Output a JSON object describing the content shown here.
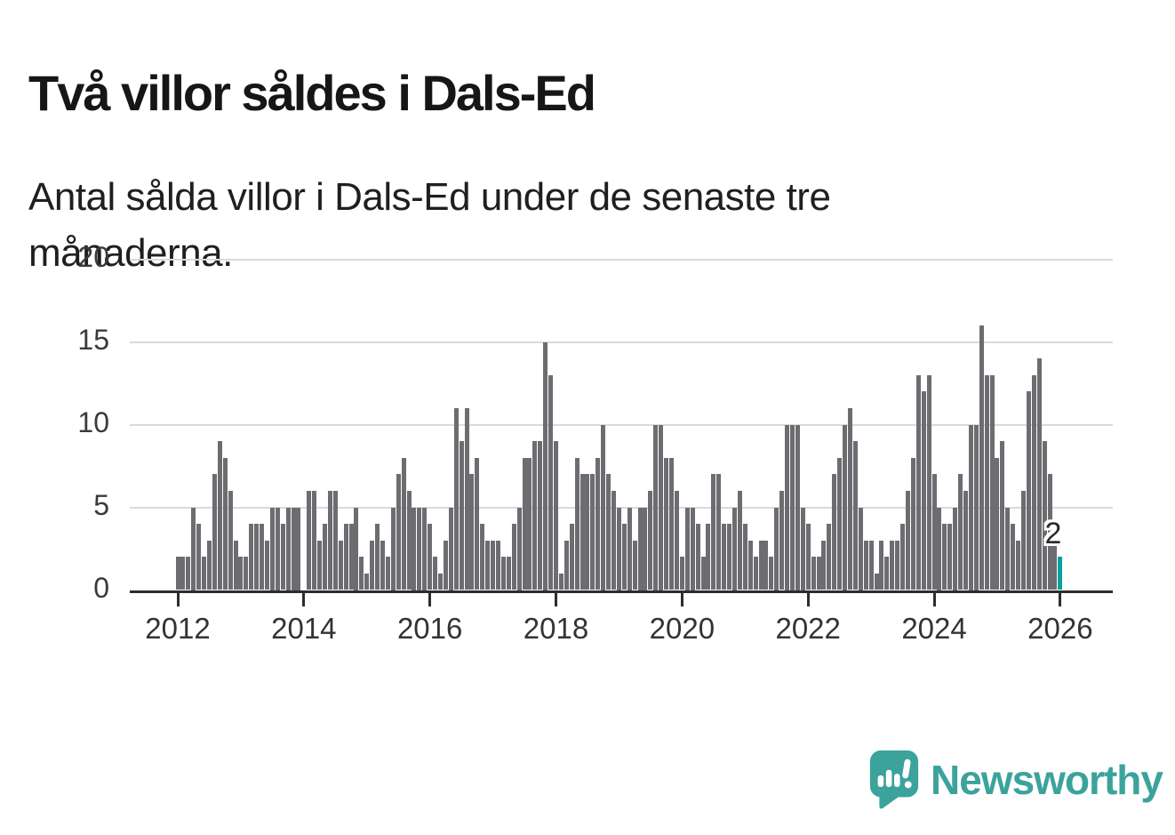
{
  "header": {
    "title": "Två villor såldes i Dals-Ed",
    "subtitle": "Antal sålda villor i Dals-Ed under de senaste tre månaderna."
  },
  "footer": {
    "brand": "Newsworthy"
  },
  "colors": {
    "bar": "#6c6c71",
    "highlight": "#0aa09b",
    "gridline": "#dadada",
    "axis": "#2d2d2d",
    "brand_teal": "#3ba39c"
  },
  "chart_data": {
    "type": "bar",
    "title": "Två villor såldes i Dals-Ed",
    "subtitle": "Antal sålda villor i Dals-Ed under de senaste tre månaderna.",
    "x_frequency": "monthly",
    "x_start": "2012-01",
    "x_end": "2026-01",
    "x_tick_labels": [
      "2012",
      "2014",
      "2016",
      "2018",
      "2020",
      "2022",
      "2024",
      "2026"
    ],
    "y_ticks": [
      0,
      5,
      10,
      15,
      20
    ],
    "ylim": [
      0,
      20
    ],
    "grid": true,
    "legend": "none",
    "series": [
      {
        "name": "Antal sålda villor, rullande tre månader",
        "values": [
          2,
          2,
          2,
          5,
          4,
          2,
          3,
          7,
          9,
          8,
          6,
          3,
          2,
          2,
          4,
          4,
          4,
          3,
          5,
          5,
          4,
          5,
          5,
          5,
          0,
          6,
          6,
          3,
          4,
          6,
          6,
          3,
          4,
          4,
          5,
          2,
          1,
          3,
          4,
          3,
          2,
          5,
          7,
          8,
          6,
          5,
          5,
          5,
          4,
          2,
          1,
          3,
          5,
          11,
          9,
          11,
          7,
          8,
          4,
          3,
          3,
          3,
          2,
          2,
          4,
          5,
          8,
          8,
          9,
          9,
          15,
          13,
          9,
          1,
          3,
          4,
          8,
          7,
          7,
          7,
          8,
          10,
          7,
          6,
          5,
          4,
          5,
          3,
          5,
          5,
          6,
          10,
          10,
          8,
          8,
          6,
          2,
          5,
          5,
          4,
          2,
          4,
          7,
          7,
          4,
          4,
          5,
          6,
          4,
          3,
          2,
          3,
          3,
          2,
          5,
          6,
          10,
          10,
          10,
          5,
          4,
          2,
          2,
          3,
          4,
          7,
          8,
          10,
          11,
          9,
          5,
          3,
          3,
          1,
          3,
          2,
          3,
          3,
          4,
          6,
          8,
          13,
          12,
          13,
          7,
          5,
          4,
          4,
          5,
          7,
          6,
          10,
          10,
          16,
          13,
          13,
          8,
          9,
          5,
          4,
          3,
          6,
          12,
          13,
          14,
          9,
          7,
          3,
          2
        ]
      }
    ],
    "highlight": {
      "position": "last",
      "value": 2,
      "label": "2"
    }
  }
}
